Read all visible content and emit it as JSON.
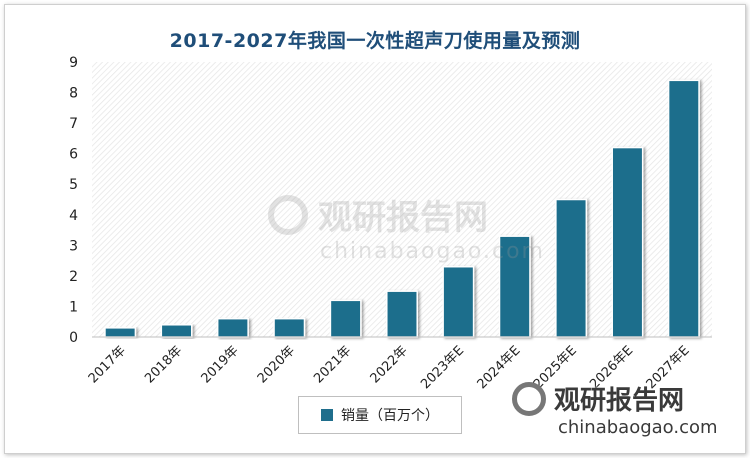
{
  "chart_data": {
    "type": "bar",
    "title": "2017-2027年我国一次性超声刀使用量及预测",
    "categories": [
      "2017年",
      "2018年",
      "2019年",
      "2020年",
      "2021年",
      "2022年",
      "2023年E",
      "2024年E",
      "2025年E",
      "2026年E",
      "2027年E"
    ],
    "series": [
      {
        "name": "销量（百万个）",
        "values": [
          0.3,
          0.4,
          0.6,
          0.6,
          1.2,
          1.5,
          2.3,
          3.3,
          4.5,
          6.2,
          8.4
        ]
      }
    ],
    "ylim": [
      0,
      9
    ],
    "yticks": [
      0,
      1,
      2,
      3,
      4,
      5,
      6,
      7,
      8,
      9
    ],
    "grid": false,
    "legend": "bottom",
    "colors": {
      "bar": "#1f6e8c",
      "title": "#1f4e79"
    }
  },
  "watermark": {
    "center_cn": "观研报告网",
    "center_en": "chinabaogao.com",
    "corner_cn": "观研报告网",
    "corner_en": "chinabaogao.com"
  }
}
